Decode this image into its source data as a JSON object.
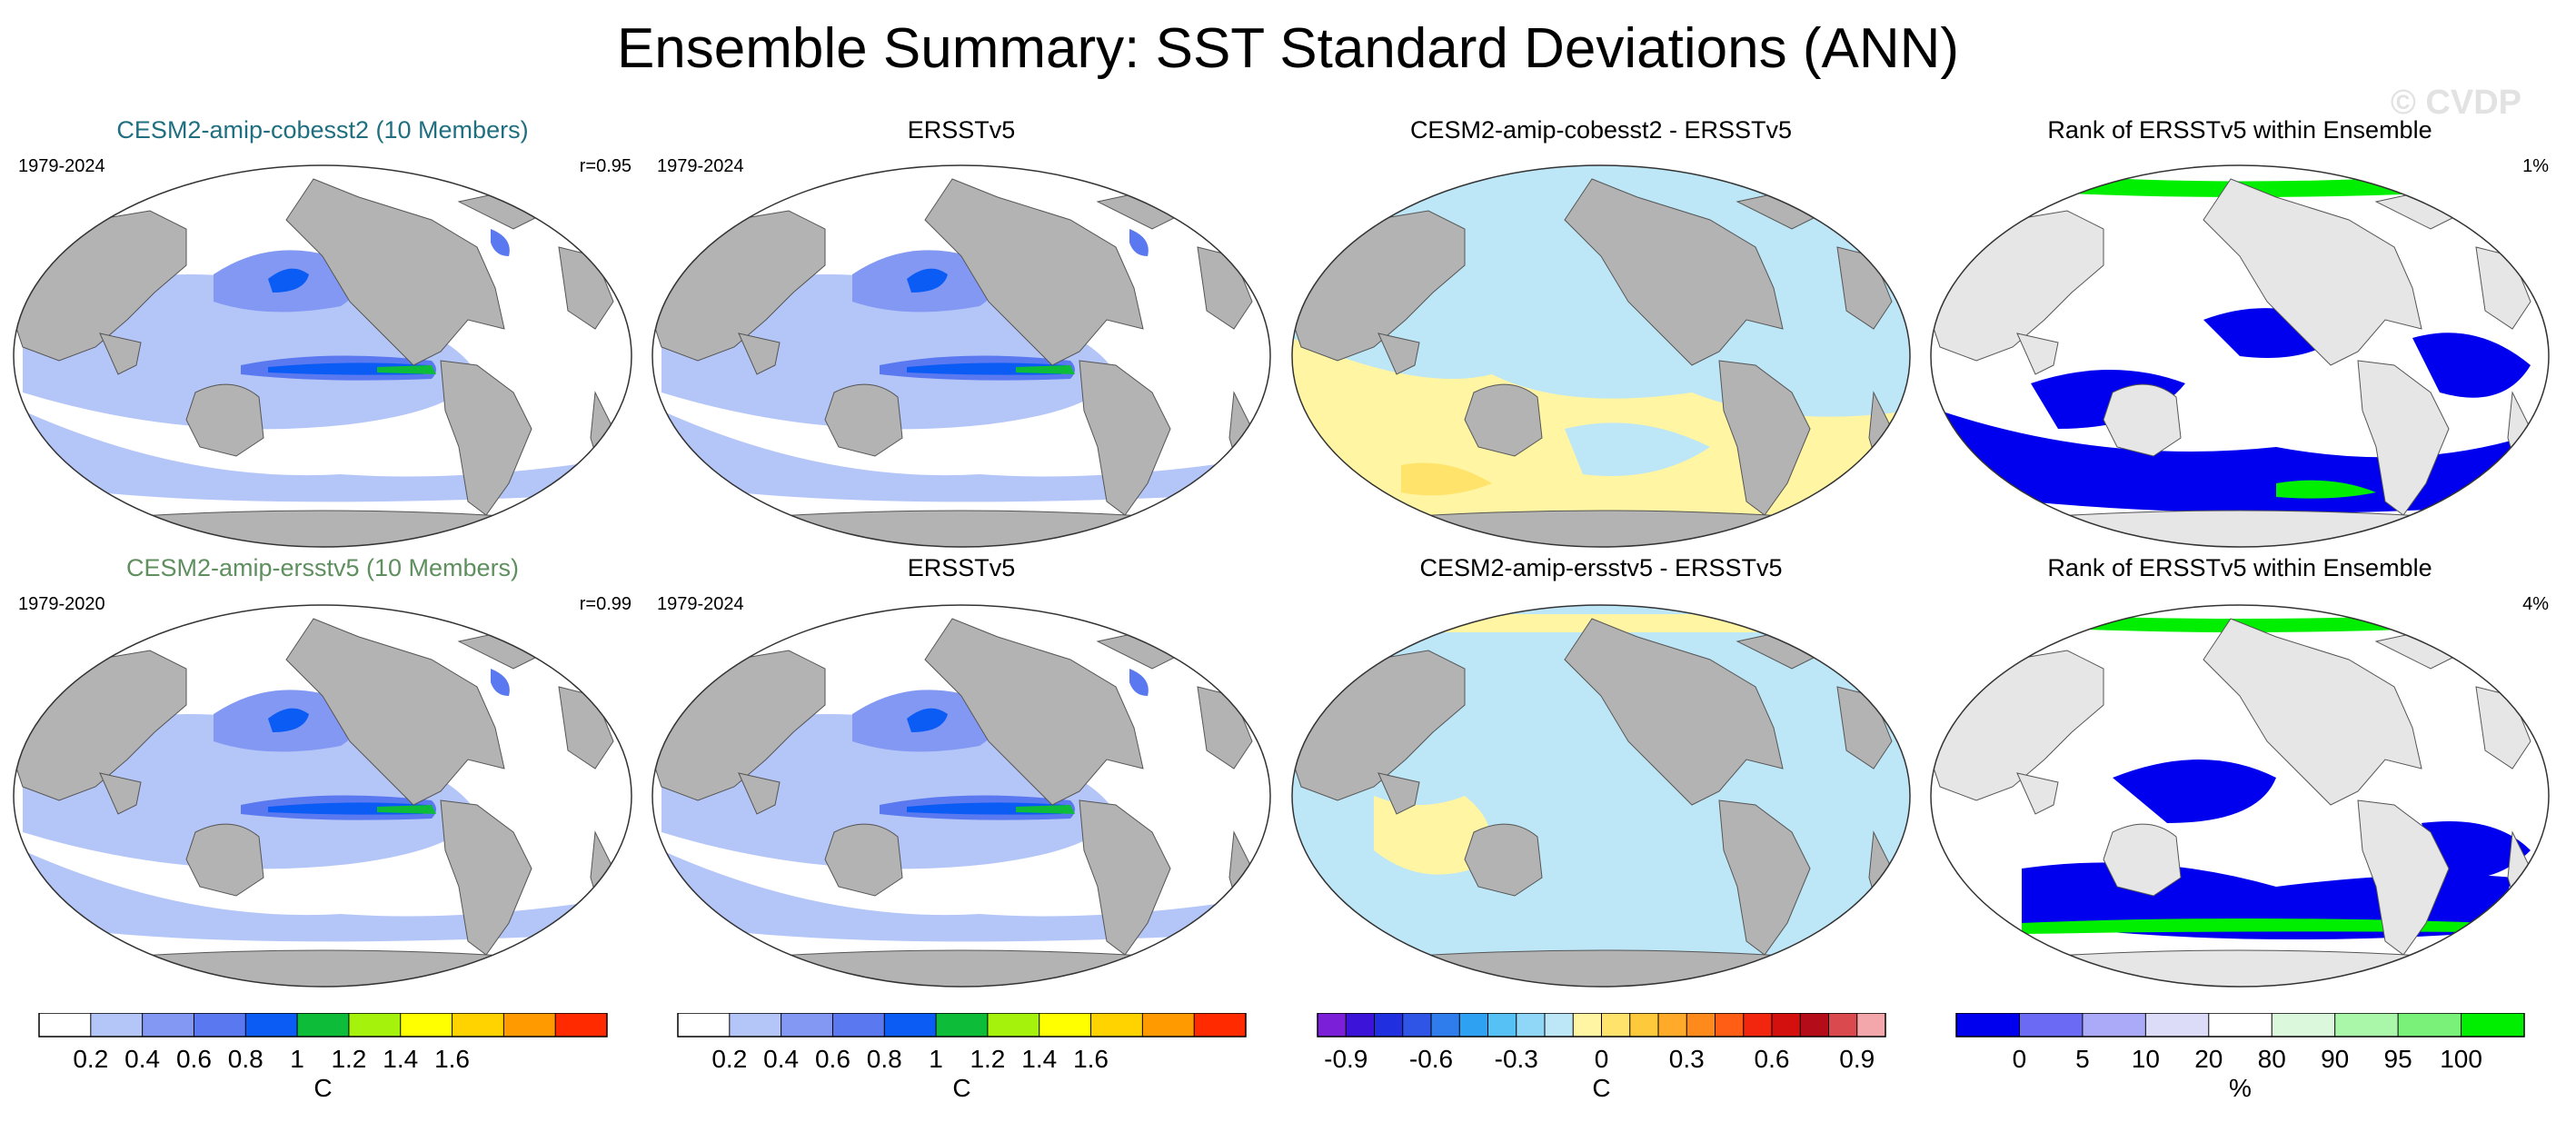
{
  "title": "Ensemble Summary: SST Standard Deviations (ANN)",
  "watermark": "© CVDP",
  "rows": [
    {
      "panels": [
        {
          "title": "CESM2-amip-cobesst2 (10 Members)",
          "title_color": "#1f6f80",
          "left_label": "1979-2024",
          "right_label": "r=0.95",
          "kind": "std"
        },
        {
          "title": "ERSSTv5",
          "title_color": "#000000",
          "left_label": "1979-2024",
          "right_label": "",
          "kind": "std"
        },
        {
          "title": "CESM2-amip-cobesst2 - ERSSTv5",
          "title_color": "#000000",
          "left_label": "",
          "right_label": "",
          "kind": "diff"
        },
        {
          "title": "Rank of ERSSTv5 within Ensemble",
          "title_color": "#000000",
          "left_label": "",
          "right_label": "1%",
          "kind": "rank"
        }
      ]
    },
    {
      "panels": [
        {
          "title": "CESM2-amip-ersstv5 (10 Members)",
          "title_color": "#5f8f5f",
          "left_label": "1979-2020",
          "right_label": "r=0.99",
          "kind": "std"
        },
        {
          "title": "ERSSTv5",
          "title_color": "#000000",
          "left_label": "1979-2024",
          "right_label": "",
          "kind": "std"
        },
        {
          "title": "CESM2-amip-ersstv5 - ERSSTv5",
          "title_color": "#000000",
          "left_label": "",
          "right_label": "",
          "kind": "diff"
        },
        {
          "title": "Rank of ERSSTv5 within Ensemble",
          "title_color": "#000000",
          "left_label": "",
          "right_label": "4%",
          "kind": "rank"
        }
      ]
    }
  ],
  "colorbars": [
    {
      "unit": "C",
      "ticks": [
        "0.2",
        "0.4",
        "0.6",
        "0.8",
        "1",
        "1.2",
        "1.4",
        "1.6"
      ],
      "colors": [
        "#ffffff",
        "#b4c5f8",
        "#8298f2",
        "#5a78ef",
        "#0b5cf5",
        "#0dbd3a",
        "#a5f20d",
        "#ffff00",
        "#ffd300",
        "#ff9a00",
        "#ff2a00"
      ]
    },
    {
      "unit": "C",
      "ticks": [
        "0.2",
        "0.4",
        "0.6",
        "0.8",
        "1",
        "1.2",
        "1.4",
        "1.6"
      ],
      "colors": [
        "#ffffff",
        "#b4c5f8",
        "#8298f2",
        "#5a78ef",
        "#0b5cf5",
        "#0dbd3a",
        "#a5f20d",
        "#ffff00",
        "#ffd300",
        "#ff9a00",
        "#ff2a00"
      ]
    },
    {
      "unit": "C",
      "ticks": [
        "-0.9",
        "-0.6",
        "-0.3",
        "0",
        "0.3",
        "0.6",
        "0.9"
      ],
      "colors": [
        "#7b1fd8",
        "#3c14d9",
        "#2030e0",
        "#2f55e6",
        "#2f7ded",
        "#2ea1f2",
        "#55c1f5",
        "#8fd6f7",
        "#bde6f7",
        "#fff5a3",
        "#ffe36b",
        "#ffc93c",
        "#ffaa28",
        "#ff8a1c",
        "#ff5e14",
        "#f2250f",
        "#d4100e",
        "#b40c18",
        "#d9494e",
        "#f4a7ab"
      ]
    },
    {
      "unit": "%",
      "ticks": [
        "0",
        "5",
        "10",
        "20",
        "80",
        "90",
        "95",
        "100"
      ],
      "colors": [
        "#0000ee",
        "#6a6af5",
        "#aaaaf8",
        "#dcdcf8",
        "#ffffff",
        "#dcf8dc",
        "#aaf7aa",
        "#7af27a",
        "#00ee00"
      ]
    }
  ]
}
